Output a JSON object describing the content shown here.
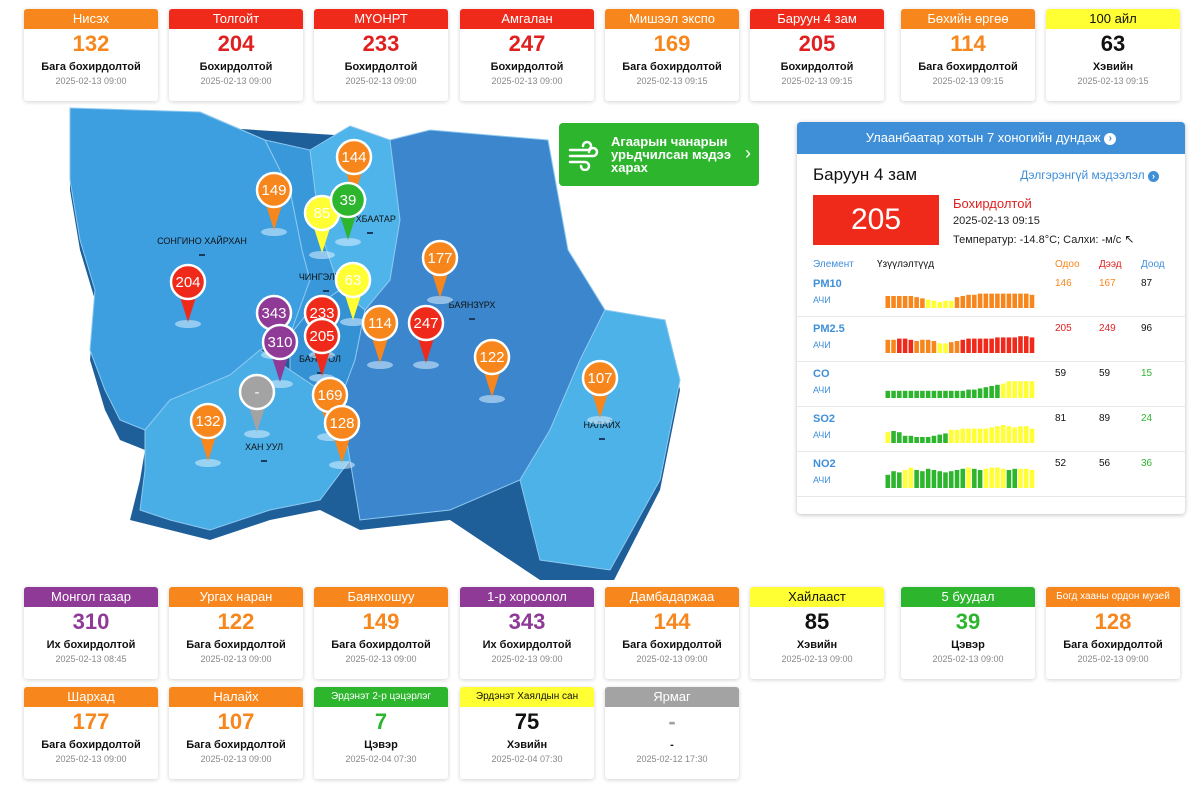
{
  "colors": {
    "bad": "#f7861c",
    "unhealthy": "#f02a1b",
    "very_unhealthy": "#8e3a96",
    "moderate": "#ffff33",
    "good": "#2db52d",
    "nodata": "#a3a3a3",
    "panel_blue": "#3f8fd8"
  },
  "top_cards": [
    {
      "name": "Нисэх",
      "value": "132",
      "level": "Бага бохирдолтой",
      "time": "2025-02-13 09:00",
      "color": "#f7861c",
      "textColor": "#f7861c",
      "hdrText": "#ffffff"
    },
    {
      "name": "Толгойт",
      "value": "204",
      "level": "Бохирдолтой",
      "time": "2025-02-13 09:00",
      "color": "#f02a1b",
      "textColor": "#e02020",
      "hdrText": "#ffffff"
    },
    {
      "name": "МҮОНРТ",
      "value": "233",
      "level": "Бохирдолтой",
      "time": "2025-02-13 09:00",
      "color": "#f02a1b",
      "textColor": "#e02020",
      "hdrText": "#ffffff"
    },
    {
      "name": "Амгалан",
      "value": "247",
      "level": "Бохирдолтой",
      "time": "2025-02-13 09:00",
      "color": "#f02a1b",
      "textColor": "#e02020",
      "hdrText": "#ffffff"
    },
    {
      "name": "Мишээл экспо",
      "value": "169",
      "level": "Бага бохирдолтой",
      "time": "2025-02-13 09:15",
      "color": "#f7861c",
      "textColor": "#f7861c",
      "hdrText": "#ffffff"
    },
    {
      "name": "Баруун 4 зам",
      "value": "205",
      "level": "Бохирдолтой",
      "time": "2025-02-13 09:15",
      "color": "#f02a1b",
      "textColor": "#e02020",
      "hdrText": "#ffffff"
    },
    {
      "name": "Бөхийн өргөө",
      "value": "114",
      "level": "Бага бохирдолтой",
      "time": "2025-02-13 09:15",
      "color": "#f7861c",
      "textColor": "#f7861c",
      "hdrText": "#ffffff"
    },
    {
      "name": "100 айл",
      "value": "63",
      "level": "Хэвийн",
      "time": "2025-02-13 09:15",
      "color": "#ffff33",
      "textColor": "#111111",
      "hdrText": "#111111"
    }
  ],
  "bottom_cards": [
    {
      "name": "Монгол газар",
      "value": "310",
      "level": "Их бохирдолтой",
      "time": "2025-02-13 08:45",
      "color": "#8e3a96",
      "textColor": "#8e3a96",
      "hdrText": "#ffffff"
    },
    {
      "name": "Ургах наран",
      "value": "122",
      "level": "Бага бохирдолтой",
      "time": "2025-02-13 09:00",
      "color": "#f7861c",
      "textColor": "#f7861c",
      "hdrText": "#ffffff"
    },
    {
      "name": "Баянхошуу",
      "value": "149",
      "level": "Бага бохирдолтой",
      "time": "2025-02-13 09:00",
      "color": "#f7861c",
      "textColor": "#f7861c",
      "hdrText": "#ffffff"
    },
    {
      "name": "1-р хороолол",
      "value": "343",
      "level": "Их бохирдолтой",
      "time": "2025-02-13 09:00",
      "color": "#8e3a96",
      "textColor": "#8e3a96",
      "hdrText": "#ffffff"
    },
    {
      "name": "Дамбадаржаа",
      "value": "144",
      "level": "Бага бохирдолтой",
      "time": "2025-02-13 09:00",
      "color": "#f7861c",
      "textColor": "#f7861c",
      "hdrText": "#ffffff"
    },
    {
      "name": "Хайлааст",
      "value": "85",
      "level": "Хэвийн",
      "time": "2025-02-13 09:00",
      "color": "#ffff33",
      "textColor": "#111111",
      "hdrText": "#111111"
    },
    {
      "name": "5 буудал",
      "value": "39",
      "level": "Цэвэр",
      "time": "2025-02-13 09:00",
      "color": "#2db52d",
      "textColor": "#2db52d",
      "hdrText": "#ffffff"
    },
    {
      "name": "Богд хааны ордон музей",
      "value": "128",
      "level": "Бага бохирдолтой",
      "time": "2025-02-13 09:00",
      "color": "#f7861c",
      "textColor": "#f7861c",
      "hdrText": "#ffffff"
    },
    {
      "name": "Шархад",
      "value": "177",
      "level": "Бага бохирдолтой",
      "time": "2025-02-13 09:00",
      "color": "#f7861c",
      "textColor": "#f7861c",
      "hdrText": "#ffffff"
    },
    {
      "name": "Налайх",
      "value": "107",
      "level": "Бага бохирдолтой",
      "time": "2025-02-13 09:00",
      "color": "#f7861c",
      "textColor": "#f7861c",
      "hdrText": "#ffffff"
    },
    {
      "name": "Эрдэнэт 2-р цэцэрлэг",
      "value": "7",
      "level": "Цэвэр",
      "time": "2025-02-04 07:30",
      "color": "#2db52d",
      "textColor": "#2db52d",
      "hdrText": "#ffffff"
    },
    {
      "name": "Эрдэнэт Хаялдын сан",
      "value": "75",
      "level": "Хэвийн",
      "time": "2025-02-04 07:30",
      "color": "#ffff33",
      "textColor": "#111111",
      "hdrText": "#111111"
    },
    {
      "name": "Ярмаг",
      "value": "-",
      "level": "-",
      "time": "2025-02-12 17:30",
      "color": "#a3a3a3",
      "textColor": "#a3a3a3",
      "hdrText": "#ffffff"
    }
  ],
  "map": {
    "districts": [
      "СОНГИНО ХАЙРХАН",
      "ЧИНГЭЛТЭЙ",
      "СҮХБААТАР",
      "БАЯНЗҮРХ",
      "БАЯНГОЛ",
      "ХАН УУЛ",
      "НАЛАЙХ"
    ],
    "pins": [
      {
        "label": "144",
        "color": "#f7861c",
        "textColor": "#ffffff"
      },
      {
        "label": "149",
        "color": "#f7861c",
        "textColor": "#ffffff"
      },
      {
        "label": "85",
        "color": "#ffff33",
        "textColor": "#111111"
      },
      {
        "label": "39",
        "color": "#2db52d",
        "textColor": "#ffffff"
      },
      {
        "label": "177",
        "color": "#f7861c",
        "textColor": "#ffffff"
      },
      {
        "label": "204",
        "color": "#f02a1b",
        "textColor": "#ffffff"
      },
      {
        "label": "63",
        "color": "#ffff33",
        "textColor": "#111111"
      },
      {
        "label": "343",
        "color": "#8e3a96",
        "textColor": "#ffffff"
      },
      {
        "label": "233",
        "color": "#f02a1b",
        "textColor": "#ffffff"
      },
      {
        "label": "114",
        "color": "#f7861c",
        "textColor": "#ffffff"
      },
      {
        "label": "247",
        "color": "#f02a1b",
        "textColor": "#ffffff"
      },
      {
        "label": "205",
        "color": "#f02a1b",
        "textColor": "#ffffff"
      },
      {
        "label": "310",
        "color": "#8e3a96",
        "textColor": "#ffffff"
      },
      {
        "label": "122",
        "color": "#f7861c",
        "textColor": "#ffffff"
      },
      {
        "label": "107",
        "color": "#f7861c",
        "textColor": "#ffffff"
      },
      {
        "label": "-",
        "color": "#a3a3a3",
        "textColor": "#ffffff"
      },
      {
        "label": "169",
        "color": "#f7861c",
        "textColor": "#ffffff"
      },
      {
        "label": "132",
        "color": "#f7861c",
        "textColor": "#ffffff"
      },
      {
        "label": "128",
        "color": "#f7861c",
        "textColor": "#ffffff"
      }
    ]
  },
  "forecast": {
    "text": "Агаарын чанарын урьдчилсан мэдээ харах",
    "icon": "wind-icon"
  },
  "panel": {
    "header": "Улаанбаатар хотын 7 хоногийн дундаж",
    "station": "Баруун 4 зам",
    "more_link": "Дэлгэрэнгүй мэдээлэл",
    "aqi": "205",
    "level": "Бохирдолтой",
    "time": "2025-02-13 09:15",
    "temp": "Температур: -14.8°C; Салхи:  -м/с",
    "col_element": "Элемент",
    "col_indicator": "Үзүүлэлтүүд",
    "col_now": "Одоо",
    "col_max": "Дээд",
    "col_min": "Доод",
    "pollutants": [
      {
        "name": "PM10",
        "unit": "АЧИ",
        "now": "146",
        "max": "167",
        "min": "87",
        "nowColor": "#f7861c",
        "maxColor": "#f7861c",
        "minColor": "#111111",
        "bars": [
          0.5,
          0.5,
          0.5,
          0.5,
          0.5,
          0.45,
          0.4,
          0.35,
          0.3,
          0.25,
          0.3,
          0.3,
          0.45,
          0.5,
          0.55,
          0.55,
          0.6,
          0.6,
          0.6,
          0.6,
          0.6,
          0.6,
          0.6,
          0.6,
          0.6,
          0.55
        ],
        "barColors": [
          "#f7861c",
          "#f7861c",
          "#f7861c",
          "#f7861c",
          "#f7861c",
          "#f7861c",
          "#f7861c",
          "#ffff33",
          "#ffff33",
          "#ffff33",
          "#ffff33",
          "#ffff33",
          "#f7861c",
          "#f7861c",
          "#f7861c",
          "#f7861c",
          "#f7861c",
          "#f7861c",
          "#f7861c",
          "#f7861c",
          "#f7861c",
          "#f7861c",
          "#f7861c",
          "#f7861c",
          "#f7861c",
          "#f7861c"
        ]
      },
      {
        "name": "PM2.5",
        "unit": "АЧИ",
        "now": "205",
        "max": "249",
        "min": "96",
        "nowColor": "#e02020",
        "maxColor": "#e02020",
        "minColor": "#111111",
        "bars": [
          0.55,
          0.55,
          0.6,
          0.6,
          0.55,
          0.5,
          0.55,
          0.55,
          0.5,
          0.4,
          0.4,
          0.45,
          0.5,
          0.55,
          0.6,
          0.6,
          0.6,
          0.6,
          0.6,
          0.65,
          0.65,
          0.65,
          0.65,
          0.7,
          0.7,
          0.65
        ],
        "barColors": [
          "#f7861c",
          "#f7861c",
          "#f02a1b",
          "#f02a1b",
          "#f02a1b",
          "#f7861c",
          "#f7861c",
          "#f7861c",
          "#f7861c",
          "#ffff33",
          "#ffff33",
          "#f7861c",
          "#f7861c",
          "#f02a1b",
          "#f02a1b",
          "#f02a1b",
          "#f02a1b",
          "#f02a1b",
          "#f02a1b",
          "#f02a1b",
          "#f02a1b",
          "#f02a1b",
          "#f02a1b",
          "#f02a1b",
          "#f02a1b",
          "#f02a1b"
        ]
      },
      {
        "name": "CO",
        "unit": "АЧИ",
        "now": "59",
        "max": "59",
        "min": "15",
        "nowColor": "#111111",
        "maxColor": "#111111",
        "minColor": "#2db52d",
        "bars": [
          0.3,
          0.3,
          0.3,
          0.3,
          0.3,
          0.3,
          0.3,
          0.3,
          0.3,
          0.3,
          0.3,
          0.3,
          0.3,
          0.3,
          0.35,
          0.35,
          0.4,
          0.45,
          0.5,
          0.55,
          0.6,
          0.7,
          0.7,
          0.7,
          0.7,
          0.7
        ],
        "barColors": [
          "#2db52d",
          "#2db52d",
          "#2db52d",
          "#2db52d",
          "#2db52d",
          "#2db52d",
          "#2db52d",
          "#2db52d",
          "#2db52d",
          "#2db52d",
          "#2db52d",
          "#2db52d",
          "#2db52d",
          "#2db52d",
          "#2db52d",
          "#2db52d",
          "#2db52d",
          "#2db52d",
          "#2db52d",
          "#2db52d",
          "#ffff33",
          "#ffff33",
          "#ffff33",
          "#ffff33",
          "#ffff33",
          "#ffff33"
        ]
      },
      {
        "name": "SO2",
        "unit": "АЧИ",
        "now": "81",
        "max": "89",
        "min": "24",
        "nowColor": "#111111",
        "maxColor": "#111111",
        "minColor": "#2db52d",
        "bars": [
          0.45,
          0.5,
          0.45,
          0.3,
          0.3,
          0.25,
          0.25,
          0.25,
          0.3,
          0.35,
          0.4,
          0.55,
          0.55,
          0.6,
          0.6,
          0.6,
          0.6,
          0.6,
          0.65,
          0.7,
          0.75,
          0.7,
          0.65,
          0.7,
          0.7,
          0.6
        ],
        "barColors": [
          "#ffff33",
          "#2db52d",
          "#2db52d",
          "#2db52d",
          "#2db52d",
          "#2db52d",
          "#2db52d",
          "#2db52d",
          "#2db52d",
          "#2db52d",
          "#2db52d",
          "#ffff33",
          "#ffff33",
          "#ffff33",
          "#ffff33",
          "#ffff33",
          "#ffff33",
          "#ffff33",
          "#ffff33",
          "#ffff33",
          "#ffff33",
          "#ffff33",
          "#ffff33",
          "#ffff33",
          "#ffff33",
          "#ffff33"
        ]
      },
      {
        "name": "NO2",
        "unit": "АЧИ",
        "now": "52",
        "max": "56",
        "min": "36",
        "nowColor": "#111111",
        "maxColor": "#111111",
        "minColor": "#2db52d",
        "bars": [
          0.55,
          0.7,
          0.65,
          0.75,
          0.85,
          0.75,
          0.7,
          0.8,
          0.75,
          0.7,
          0.65,
          0.7,
          0.75,
          0.8,
          0.85,
          0.8,
          0.75,
          0.8,
          0.85,
          0.85,
          0.8,
          0.75,
          0.8,
          0.8,
          0.8,
          0.75
        ],
        "barColors": [
          "#2db52d",
          "#2db52d",
          "#2db52d",
          "#ffff33",
          "#ffff33",
          "#2db52d",
          "#2db52d",
          "#2db52d",
          "#2db52d",
          "#2db52d",
          "#2db52d",
          "#2db52d",
          "#2db52d",
          "#2db52d",
          "#ffff33",
          "#2db52d",
          "#2db52d",
          "#ffff33",
          "#ffff33",
          "#ffff33",
          "#ffff33",
          "#2db52d",
          "#2db52d",
          "#ffff33",
          "#ffff33",
          "#ffff33"
        ]
      }
    ]
  }
}
